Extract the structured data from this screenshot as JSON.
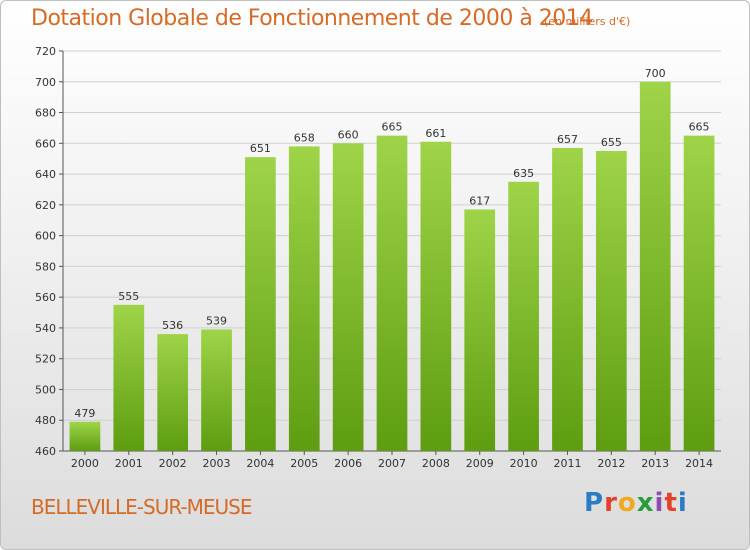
{
  "header": {
    "title": "Dotation Globale de Fonctionnement de 2000 à 2014",
    "subtitle": "(en milliers d'€)"
  },
  "footer": {
    "commune": "BELLEVILLE-SUR-MEUSE",
    "brand": "Proxiti"
  },
  "colors": {
    "title": "#d66a27",
    "bar_top": "#9fd448",
    "bar_bottom": "#5e9d10",
    "grid": "#d0d0d0"
  },
  "chart_data": {
    "type": "bar",
    "title": "Dotation Globale de Fonctionnement de 2000 à 2014",
    "subtitle": "(en milliers d'€)",
    "categories": [
      "2000",
      "2001",
      "2002",
      "2003",
      "2004",
      "2005",
      "2006",
      "2007",
      "2008",
      "2009",
      "2010",
      "2011",
      "2012",
      "2013",
      "2014"
    ],
    "values": [
      479,
      555,
      536,
      539,
      651,
      658,
      660,
      665,
      661,
      617,
      635,
      657,
      655,
      700,
      665
    ],
    "ylim": [
      460,
      720
    ],
    "yticks": [
      460,
      480,
      500,
      520,
      540,
      560,
      580,
      600,
      620,
      640,
      660,
      680,
      700,
      720
    ],
    "grid": true,
    "legend": "none"
  }
}
